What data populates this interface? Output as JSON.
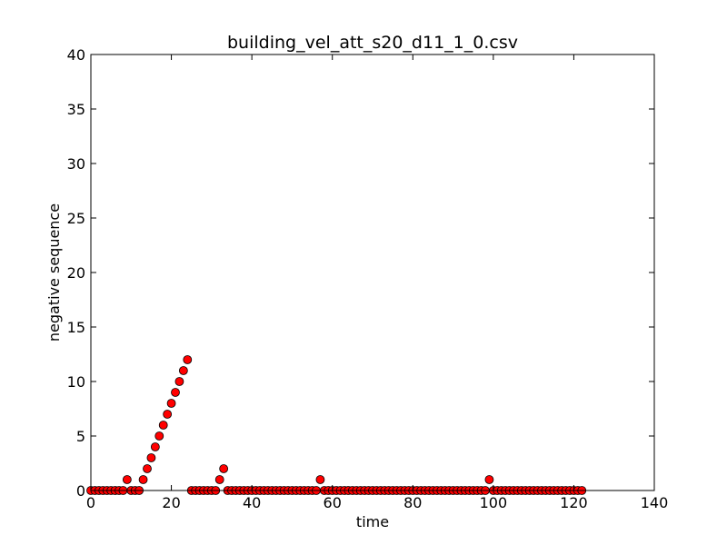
{
  "chart_data": {
    "type": "scatter",
    "title": "building_vel_att_s20_d11_1_0.csv",
    "xlabel": "time",
    "ylabel": "negative sequence",
    "xlim": [
      0,
      140
    ],
    "ylim": [
      0,
      40
    ],
    "xticks": [
      "0",
      "20",
      "40",
      "60",
      "80",
      "100",
      "120",
      "140"
    ],
    "yticks": [
      "0",
      "5",
      "10",
      "15",
      "20",
      "25",
      "30",
      "35",
      "40"
    ],
    "grid": false,
    "marker_color": "#ff0000",
    "marker_edge_color": "#000000",
    "series": [
      {
        "x": [
          0,
          1,
          2,
          3,
          4,
          5,
          6,
          7,
          8,
          9,
          10,
          11,
          12,
          13,
          14,
          15,
          16,
          17,
          18,
          19,
          20,
          21,
          22,
          23,
          24,
          25,
          26,
          27,
          28,
          29,
          30,
          31,
          32,
          33,
          34,
          35,
          36,
          37,
          38,
          39,
          40,
          41,
          42,
          43,
          44,
          45,
          46,
          47,
          48,
          49,
          50,
          51,
          52,
          53,
          54,
          55,
          56,
          57,
          58,
          59,
          60,
          61,
          62,
          63,
          64,
          65,
          66,
          67,
          68,
          69,
          70,
          71,
          72,
          73,
          74,
          75,
          76,
          77,
          78,
          79,
          80,
          81,
          82,
          83,
          84,
          85,
          86,
          87,
          88,
          89,
          90,
          91,
          92,
          93,
          94,
          95,
          96,
          97,
          98,
          99,
          100,
          101,
          102,
          103,
          104,
          105,
          106,
          107,
          108,
          109,
          110,
          111,
          112,
          113,
          114,
          115,
          116,
          117,
          118,
          119,
          120,
          121,
          122
        ],
        "y": [
          0,
          0,
          0,
          0,
          0,
          0,
          0,
          0,
          0,
          1,
          0,
          0,
          0,
          1,
          2,
          3,
          4,
          5,
          6,
          7,
          8,
          9,
          10,
          11,
          12,
          0,
          0,
          0,
          0,
          0,
          0,
          0,
          1,
          2,
          0,
          0,
          0,
          0,
          0,
          0,
          0,
          0,
          0,
          0,
          0,
          0,
          0,
          0,
          0,
          0,
          0,
          0,
          0,
          0,
          0,
          0,
          0,
          1,
          0,
          0,
          0,
          0,
          0,
          0,
          0,
          0,
          0,
          0,
          0,
          0,
          0,
          0,
          0,
          0,
          0,
          0,
          0,
          0,
          0,
          0,
          0,
          0,
          0,
          0,
          0,
          0,
          0,
          0,
          0,
          0,
          0,
          0,
          0,
          0,
          0,
          0,
          0,
          0,
          0,
          1,
          0,
          0,
          0,
          0,
          0,
          0,
          0,
          0,
          0,
          0,
          0,
          0,
          0,
          0,
          0,
          0,
          0,
          0,
          0,
          0,
          0,
          0,
          0
        ]
      }
    ]
  }
}
